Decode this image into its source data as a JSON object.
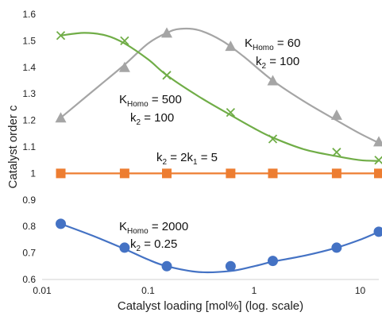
{
  "chart_data": {
    "type": "scatter",
    "xscale": "log",
    "xlim": [
      0.01,
      15
    ],
    "ylim": [
      0.6,
      1.6
    ],
    "xlabel": "Catalyst loading [mol%] (log. scale)",
    "ylabel": "Catalyst order c",
    "grid": false,
    "xticks": [
      "0.01",
      "0.1",
      "1",
      "10"
    ],
    "yticks": [
      "0.6",
      "0.7",
      "0.8",
      "0.9",
      "1",
      "1.1",
      "1.2",
      "1.3",
      "1.4",
      "1.5",
      "1.6"
    ],
    "series": [
      {
        "color": "#a5a5a5",
        "marker": "triangle",
        "points": [
          [
            0.015,
            1.21
          ],
          [
            0.06,
            1.4
          ],
          [
            0.15,
            1.53
          ],
          [
            0.6,
            1.48
          ],
          [
            1.5,
            1.35
          ],
          [
            6,
            1.22
          ],
          [
            15,
            1.12
          ]
        ],
        "curve": [
          [
            0.015,
            1.21
          ],
          [
            0.03,
            1.31
          ],
          [
            0.06,
            1.41
          ],
          [
            0.1,
            1.49
          ],
          [
            0.15,
            1.53
          ],
          [
            0.2,
            1.545
          ],
          [
            0.3,
            1.54
          ],
          [
            0.5,
            1.5
          ],
          [
            0.8,
            1.44
          ],
          [
            1.5,
            1.35
          ],
          [
            3,
            1.27
          ],
          [
            6,
            1.2
          ],
          [
            10,
            1.15
          ],
          [
            15,
            1.115
          ]
        ],
        "label": [
          "K",
          "Homo",
          " = 60",
          "k",
          "2",
          " = 100"
        ]
      },
      {
        "color": "#70ad47",
        "marker": "x",
        "points": [
          [
            0.015,
            1.52
          ],
          [
            0.06,
            1.5
          ],
          [
            0.15,
            1.37
          ],
          [
            0.6,
            1.23
          ],
          [
            1.5,
            1.13
          ],
          [
            6,
            1.08
          ],
          [
            15,
            1.05
          ]
        ],
        "curve": [
          [
            0.015,
            1.52
          ],
          [
            0.025,
            1.53
          ],
          [
            0.04,
            1.52
          ],
          [
            0.06,
            1.49
          ],
          [
            0.1,
            1.43
          ],
          [
            0.15,
            1.37
          ],
          [
            0.3,
            1.29
          ],
          [
            0.6,
            1.22
          ],
          [
            1,
            1.17
          ],
          [
            1.5,
            1.135
          ],
          [
            3,
            1.09
          ],
          [
            6,
            1.065
          ],
          [
            10,
            1.05
          ],
          [
            15,
            1.047
          ]
        ],
        "label": [
          "K",
          "Homo",
          " = 500",
          "k",
          "2",
          " = 100"
        ]
      },
      {
        "color": "#ed7d31",
        "marker": "square",
        "points": [
          [
            0.015,
            1.0
          ],
          [
            0.06,
            1.0
          ],
          [
            0.15,
            1.0
          ],
          [
            0.6,
            1.0
          ],
          [
            1.5,
            1.0
          ],
          [
            6,
            1.0
          ],
          [
            15,
            1.0
          ]
        ],
        "curve": [
          [
            0.015,
            1.0
          ],
          [
            15,
            1.0
          ]
        ],
        "label": [
          "k",
          "2",
          " = 2k",
          "1",
          " = 5"
        ]
      },
      {
        "color": "#4472c4",
        "marker": "circle",
        "points": [
          [
            0.015,
            0.81
          ],
          [
            0.06,
            0.72
          ],
          [
            0.15,
            0.65
          ],
          [
            0.6,
            0.65
          ],
          [
            1.5,
            0.67
          ],
          [
            6,
            0.72
          ],
          [
            15,
            0.78
          ]
        ],
        "curve": [
          [
            0.015,
            0.81
          ],
          [
            0.03,
            0.765
          ],
          [
            0.06,
            0.715
          ],
          [
            0.1,
            0.675
          ],
          [
            0.15,
            0.65
          ],
          [
            0.3,
            0.628
          ],
          [
            0.6,
            0.632
          ],
          [
            1,
            0.65
          ],
          [
            1.5,
            0.667
          ],
          [
            3,
            0.69
          ],
          [
            6,
            0.72
          ],
          [
            10,
            0.75
          ],
          [
            15,
            0.78
          ]
        ],
        "label": [
          "K",
          "Homo",
          " = 2000",
          "k",
          "2",
          " = 0.25"
        ]
      }
    ]
  }
}
